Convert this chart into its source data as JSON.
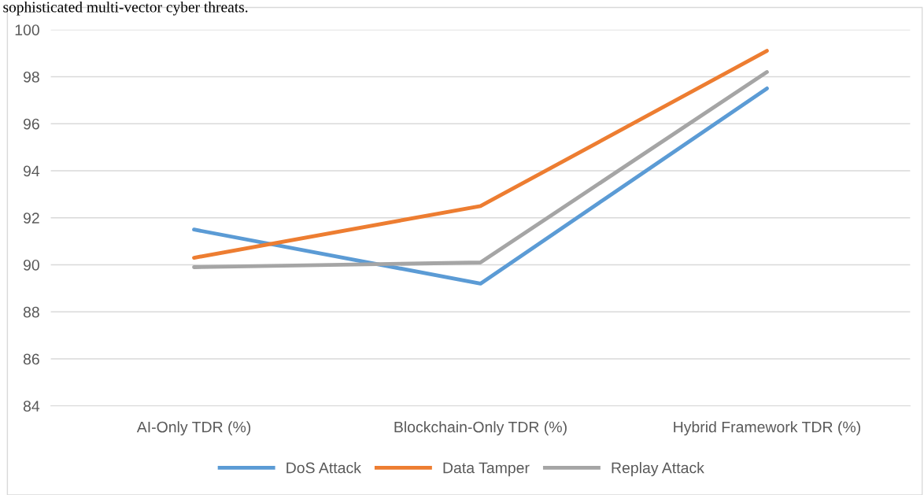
{
  "chart_data": {
    "type": "line",
    "categories": [
      "AI-Only TDR (%)",
      "Blockchain-Only TDR (%)",
      "Hybrid Framework TDR (%)"
    ],
    "series": [
      {
        "name": "DoS Attack",
        "color": "#5b9bd5",
        "values": [
          91.5,
          89.2,
          97.5
        ]
      },
      {
        "name": "Data Tamper",
        "color": "#ed7d31",
        "values": [
          90.3,
          92.5,
          99.1
        ]
      },
      {
        "name": "Replay Attack",
        "color": "#a5a5a5",
        "values": [
          89.9,
          90.1,
          98.2
        ]
      }
    ],
    "ylim": [
      84,
      100
    ],
    "yticks": [
      84,
      86,
      88,
      90,
      92,
      94,
      96,
      98,
      100
    ],
    "grid": "y",
    "legend": "bottom",
    "marker": "none",
    "line_style": "solid",
    "annotations": [
      "sophisticated multi-vector cyber threats."
    ]
  }
}
